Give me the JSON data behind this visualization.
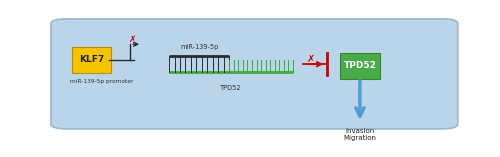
{
  "bg_color": "#bad5ea",
  "fig_bg": "#ffffff",
  "klf7_box_color": "#f5c400",
  "klf7_text": "KLF7",
  "promoter_label": "miR-139-5p promoter",
  "mir_label": "miR-139-5p",
  "tpd52_rna_label": "TPD52",
  "tpd52_box_color": "#4aaa4a",
  "tpd52_text": "TPD52",
  "tpd52_text_color": "#ffffff",
  "invasion_text": "Invasion\nMigration",
  "arrow_color": "#4a9fd4",
  "inhibit_color": "#cc0000",
  "dark_color": "#2a2a2a",
  "green_color": "#3aaa3a",
  "bg_edge_color": "#9ab8cc"
}
